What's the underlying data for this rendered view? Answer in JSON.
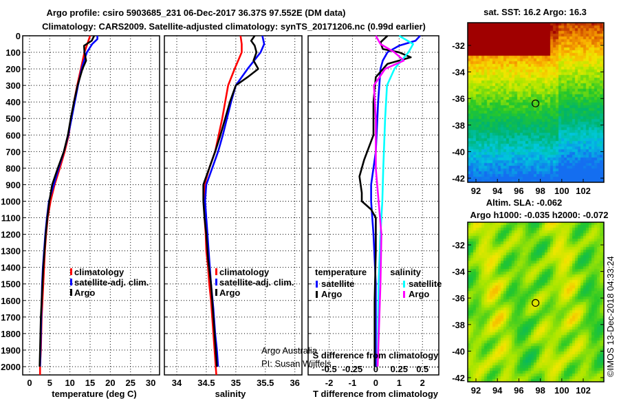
{
  "title_line1": "Argo profile: csiro 5903685_231 06-Dec-2017 36.37S 97.552E (DM data)",
  "title_line2": "Climatology: CARS2009. Satellite-adjusted climatology: synTS_20171206.nc (0.99d earlier)",
  "colors": {
    "climatology": "#ff0000",
    "satellite": "#0000ff",
    "argo": "#000000",
    "sal_sat": "#00ffff",
    "sal_argo": "#ff00ff"
  },
  "chart_data": [
    {
      "type": "line",
      "xlabel": "temperature (deg C)",
      "ylabel": "",
      "xlim": [
        -1.7,
        32.2
      ],
      "ylim": [
        2050,
        0
      ],
      "xticks": [
        0,
        5,
        10,
        15,
        20,
        25,
        30
      ],
      "yticks": [
        0,
        100,
        200,
        300,
        400,
        500,
        600,
        700,
        800,
        900,
        1000,
        1100,
        1200,
        1300,
        1400,
        1500,
        1600,
        1700,
        1800,
        1900,
        2000
      ],
      "grid": true,
      "legend": [
        "climatology",
        "satellite-adj. clim.",
        "Argo"
      ],
      "series": [
        {
          "name": "climatology",
          "color": "#ff0000",
          "points": [
            [
              15.0,
              0
            ],
            [
              14.3,
              50
            ],
            [
              13.6,
              100
            ],
            [
              12.7,
              200
            ],
            [
              11.8,
              300
            ],
            [
              11.0,
              400
            ],
            [
              10.3,
              500
            ],
            [
              9.7,
              600
            ],
            [
              8.7,
              700
            ],
            [
              7.5,
              800
            ],
            [
              6.2,
              900
            ],
            [
              5.2,
              1000
            ],
            [
              4.5,
              1100
            ],
            [
              4.1,
              1200
            ],
            [
              3.8,
              1300
            ],
            [
              3.6,
              1400
            ],
            [
              3.4,
              1500
            ],
            [
              3.2,
              1600
            ],
            [
              3.0,
              1700
            ],
            [
              2.9,
              1800
            ],
            [
              2.8,
              1900
            ],
            [
              2.6,
              2000
            ],
            [
              2.6,
              2050
            ]
          ]
        },
        {
          "name": "satellite-adj. clim.",
          "color": "#0000ff",
          "points": [
            [
              16.8,
              0
            ],
            [
              16.8,
              20
            ],
            [
              15.5,
              50
            ],
            [
              14.2,
              100
            ],
            [
              13.5,
              150
            ],
            [
              12.9,
              200
            ],
            [
              12.0,
              300
            ],
            [
              11.2,
              400
            ],
            [
              10.4,
              500
            ],
            [
              9.6,
              600
            ],
            [
              8.5,
              700
            ],
            [
              7.2,
              800
            ],
            [
              6.0,
              900
            ],
            [
              4.8,
              1000
            ],
            [
              4.3,
              1100
            ],
            [
              3.9,
              1200
            ],
            [
              3.6,
              1300
            ],
            [
              3.3,
              1400
            ],
            [
              3.1,
              1500
            ],
            [
              2.9,
              1700
            ],
            [
              2.7,
              1900
            ],
            [
              2.6,
              2000
            ]
          ]
        },
        {
          "name": "Argo",
          "color": "#000000",
          "points": [
            [
              16.0,
              0
            ],
            [
              15.4,
              30
            ],
            [
              13.5,
              60
            ],
            [
              13.6,
              100
            ],
            [
              14.0,
              150
            ],
            [
              13.1,
              200
            ],
            [
              11.9,
              300
            ],
            [
              11.0,
              400
            ],
            [
              10.2,
              500
            ],
            [
              9.5,
              600
            ],
            [
              8.5,
              700
            ],
            [
              7.0,
              800
            ],
            [
              5.6,
              900
            ],
            [
              4.9,
              1000
            ],
            [
              4.4,
              1100
            ],
            [
              4.0,
              1200
            ],
            [
              3.7,
              1300
            ],
            [
              3.4,
              1400
            ],
            [
              3.2,
              1500
            ],
            [
              3.0,
              1600
            ],
            [
              2.8,
              1700
            ],
            [
              2.7,
              1800
            ],
            [
              2.6,
              1900
            ],
            [
              2.5,
              2000
            ]
          ]
        }
      ]
    },
    {
      "type": "line",
      "xlabel": "salinity",
      "xlim": [
        33.79,
        36.12
      ],
      "ylim": [
        2050,
        0
      ],
      "xticks": [
        34,
        34.5,
        35,
        35.5,
        36
      ],
      "grid": true,
      "legend": [
        "climatology",
        "satellite-adj. clim.",
        "Argo"
      ],
      "annotation": [
        "Argo Australia",
        "PI: Susan Wijffels"
      ],
      "series": [
        {
          "name": "climatology",
          "color": "#ff0000",
          "points": [
            [
              35.08,
              0
            ],
            [
              35.1,
              50
            ],
            [
              35.1,
              100
            ],
            [
              34.98,
              200
            ],
            [
              34.87,
              300
            ],
            [
              34.82,
              400
            ],
            [
              34.77,
              500
            ],
            [
              34.71,
              600
            ],
            [
              34.65,
              700
            ],
            [
              34.55,
              800
            ],
            [
              34.47,
              900
            ],
            [
              34.46,
              1000
            ],
            [
              34.47,
              1100
            ],
            [
              34.49,
              1200
            ],
            [
              34.5,
              1300
            ],
            [
              34.53,
              1400
            ],
            [
              34.55,
              1500
            ],
            [
              34.58,
              1600
            ],
            [
              34.6,
              1700
            ],
            [
              34.62,
              1800
            ],
            [
              34.64,
              1900
            ],
            [
              34.66,
              2000
            ],
            [
              34.67,
              2050
            ]
          ]
        },
        {
          "name": "satellite-adj. clim.",
          "color": "#0000ff",
          "points": [
            [
              35.45,
              0
            ],
            [
              35.48,
              50
            ],
            [
              35.42,
              100
            ],
            [
              35.2,
              200
            ],
            [
              35.0,
              300
            ],
            [
              34.92,
              400
            ],
            [
              34.85,
              500
            ],
            [
              34.78,
              600
            ],
            [
              34.7,
              700
            ],
            [
              34.6,
              800
            ],
            [
              34.5,
              900
            ],
            [
              34.48,
              1000
            ],
            [
              34.5,
              1100
            ],
            [
              34.52,
              1200
            ],
            [
              34.55,
              1350
            ],
            [
              34.58,
              1500
            ],
            [
              34.62,
              1650
            ],
            [
              34.65,
              1800
            ],
            [
              34.68,
              1900
            ],
            [
              34.7,
              2000
            ]
          ]
        },
        {
          "name": "Argo",
          "color": "#000000",
          "points": [
            [
              35.32,
              0
            ],
            [
              35.26,
              30
            ],
            [
              35.32,
              60
            ],
            [
              35.35,
              100
            ],
            [
              35.3,
              150
            ],
            [
              35.38,
              200
            ],
            [
              35.2,
              250
            ],
            [
              35.0,
              300
            ],
            [
              34.9,
              400
            ],
            [
              34.82,
              500
            ],
            [
              34.74,
              600
            ],
            [
              34.65,
              700
            ],
            [
              34.55,
              800
            ],
            [
              34.45,
              900
            ],
            [
              34.45,
              1000
            ],
            [
              34.47,
              1100
            ],
            [
              34.5,
              1200
            ],
            [
              34.53,
              1350
            ],
            [
              34.58,
              1500
            ],
            [
              34.62,
              1700
            ],
            [
              34.66,
              1900
            ],
            [
              34.68,
              2000
            ]
          ]
        }
      ]
    },
    {
      "type": "line",
      "xlabel": "T difference from climatology",
      "xlabel2": "S difference from climatology",
      "xlim": [
        -2.9,
        2.7
      ],
      "ylim": [
        2050,
        0
      ],
      "xticks": [
        -2,
        -1,
        0,
        1,
        2
      ],
      "xticks_s": [
        "-0.5",
        "-0.25",
        "0",
        "0.25",
        "0.5"
      ],
      "grid": true,
      "legend_left_title": "temperature",
      "legend_right_title": "salinity",
      "legend": [
        "satellite",
        "Argo",
        "satellite",
        "Argo"
      ],
      "series": [
        {
          "name": "T satellite",
          "color": "#0000ff",
          "units": "T",
          "points": [
            [
              1.9,
              0
            ],
            [
              1.7,
              30
            ],
            [
              1.0,
              60
            ],
            [
              0.5,
              100
            ],
            [
              0.3,
              150
            ],
            [
              0.2,
              200
            ],
            [
              0.1,
              400
            ],
            [
              0.0,
              700
            ],
            [
              -0.2,
              900
            ],
            [
              -0.2,
              1000
            ],
            [
              -0.1,
              1200
            ],
            [
              0,
              1500
            ],
            [
              0,
              2000
            ]
          ]
        },
        {
          "name": "T Argo",
          "color": "#000000",
          "units": "T",
          "points": [
            [
              0.5,
              0
            ],
            [
              0.2,
              40
            ],
            [
              0.3,
              80
            ],
            [
              1.0,
              100
            ],
            [
              1.5,
              130
            ],
            [
              0.5,
              170
            ],
            [
              0.0,
              250
            ],
            [
              -0.1,
              400
            ],
            [
              -0.1,
              600
            ],
            [
              -0.5,
              750
            ],
            [
              -0.7,
              850
            ],
            [
              -0.6,
              950
            ],
            [
              -0.6,
              1000
            ],
            [
              -0.2,
              1050
            ],
            [
              0.0,
              1100
            ],
            [
              0,
              1300
            ],
            [
              -0.05,
              1600
            ],
            [
              -0.05,
              2000
            ]
          ]
        },
        {
          "name": "S satellite",
          "color": "#00ffff",
          "units": "S",
          "points": [
            [
              0.25,
              0
            ],
            [
              0.4,
              50
            ],
            [
              0.35,
              100
            ],
            [
              0.2,
              200
            ],
            [
              0.12,
              300
            ],
            [
              0.1,
              500
            ],
            [
              0.08,
              800
            ],
            [
              0.07,
              1000
            ],
            [
              0.05,
              1200
            ],
            [
              0.03,
              1500
            ],
            [
              0.02,
              2000
            ]
          ]
        },
        {
          "name": "S Argo",
          "color": "#ff00ff",
          "units": "S",
          "points": [
            [
              0.0,
              0
            ],
            [
              0.05,
              50
            ],
            [
              0.2,
              100
            ],
            [
              0.3,
              150
            ],
            [
              0.1,
              200
            ],
            [
              -0.02,
              300
            ],
            [
              0.0,
              500
            ],
            [
              0.0,
              800
            ],
            [
              0.03,
              1000
            ],
            [
              0.06,
              1200
            ],
            [
              0.05,
              1500
            ],
            [
              0.02,
              2000
            ]
          ]
        }
      ]
    },
    {
      "type": "heatmap",
      "title": "sat. SST: 16.2 Argo: 16.3",
      "xticks": [
        92,
        94,
        96,
        98,
        100,
        102
      ],
      "yticks": [
        -32,
        -34,
        -36,
        -38,
        -40,
        -42
      ],
      "marker": [
        97.552,
        -36.37
      ]
    },
    {
      "type": "heatmap",
      "title": "Altim. SLA: -0.062",
      "subtitle": "Argo h1000: -0.035 h2000: -0.072",
      "xticks": [
        92,
        94,
        96,
        98,
        100,
        102
      ],
      "yticks": [
        -32,
        -34,
        -36,
        -38,
        -40,
        -42
      ],
      "marker": [
        97.552,
        -36.37
      ]
    }
  ],
  "credit": "©IMOS 13-Dec-2018 04:33:24"
}
